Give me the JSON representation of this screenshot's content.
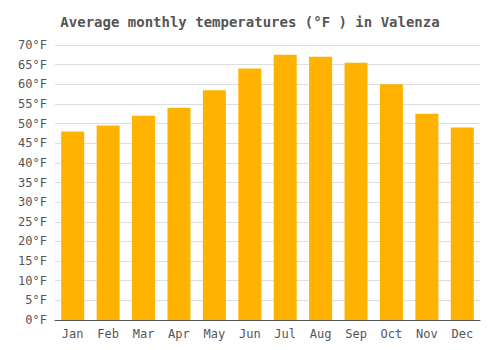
{
  "chart_data": {
    "type": "bar",
    "title": "Average monthly temperatures (°F ) in Valenza",
    "categories": [
      "Jan",
      "Feb",
      "Mar",
      "Apr",
      "May",
      "Jun",
      "Jul",
      "Aug",
      "Sep",
      "Oct",
      "Nov",
      "Dec"
    ],
    "values": [
      48,
      49.5,
      52,
      54,
      58.5,
      64,
      67.5,
      67,
      65.5,
      60,
      52.5,
      49
    ],
    "color": "#FFB300",
    "ylim": [
      0,
      70
    ],
    "yticks": [
      {
        "value": 0,
        "label": "0°F"
      },
      {
        "value": 5,
        "label": "5°F"
      },
      {
        "value": 10,
        "label": "10°F"
      },
      {
        "value": 15,
        "label": "15°F"
      },
      {
        "value": 20,
        "label": "20°F"
      },
      {
        "value": 25,
        "label": "25°F"
      },
      {
        "value": 30,
        "label": "30°F"
      },
      {
        "value": 35,
        "label": "35°F"
      },
      {
        "value": 40,
        "label": "40°F"
      },
      {
        "value": 45,
        "label": "45°F"
      },
      {
        "value": 50,
        "label": "50°F"
      },
      {
        "value": 55,
        "label": "55°F"
      },
      {
        "value": 60,
        "label": "60°F"
      },
      {
        "value": 65,
        "label": "65°F"
      },
      {
        "value": 70,
        "label": "70°F"
      }
    ],
    "grid": true
  }
}
